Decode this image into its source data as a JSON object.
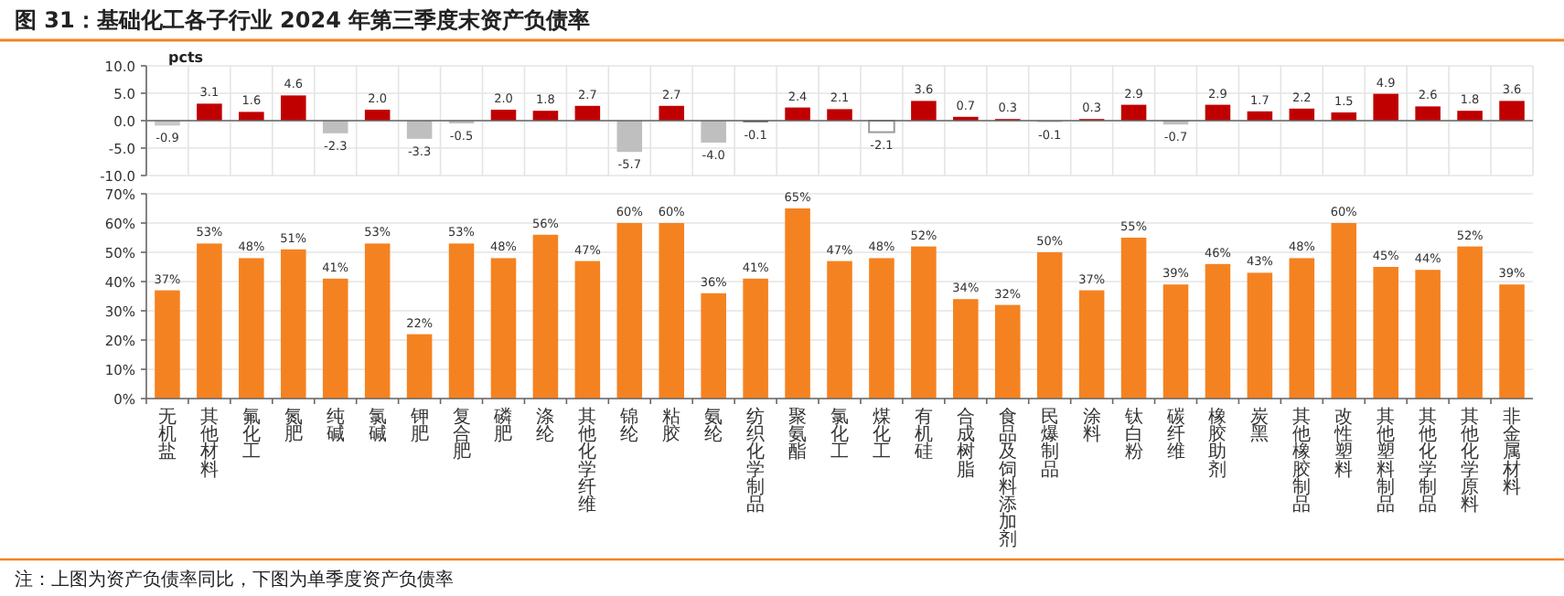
{
  "chart_data": [
    {
      "type": "bar",
      "title": "图 31：基础化工各子行业 2024 年第三季度末资产负债率",
      "ylabel": "pcts",
      "categories": [
        null,
        null,
        null,
        null,
        null,
        null,
        null,
        null,
        null,
        null,
        null,
        null,
        null,
        null,
        null,
        null,
        null,
        null,
        null,
        null,
        null,
        null,
        null,
        null,
        null,
        null,
        null,
        null,
        null,
        null,
        null,
        null,
        null
      ],
      "values": [
        -0.9,
        3.1,
        1.6,
        4.6,
        -2.3,
        2.0,
        -3.3,
        -0.5,
        2.0,
        1.8,
        2.7,
        -5.7,
        2.7,
        -4.0,
        -0.1,
        2.4,
        2.1,
        -2.1,
        3.6,
        0.7,
        0.3,
        -0.1,
        0.3,
        2.9,
        -0.7,
        2.9,
        1.7,
        2.2,
        1.5,
        4.9,
        2.6,
        1.8,
        3.6
      ],
      "colors": [
        "#c8c8c8",
        "#c00000",
        "#c00000",
        "#c00000",
        "#bfbfbf",
        "#c00000",
        "#bfbfbf",
        "#bfbfbf",
        "#c00000",
        "#c00000",
        "#c00000",
        "#bfbfbf",
        "#c00000",
        "#bfbfbf",
        "#404040",
        "#c00000",
        "#c00000",
        "#ffffff",
        "#c00000",
        "#c00000",
        "#c00000",
        "#bfbfbf",
        "#c00000",
        "#c00000",
        "#bfbfbf",
        "#c00000",
        "#c00000",
        "#c00000",
        "#c00000",
        "#c00000",
        "#c00000",
        "#c00000",
        "#c00000"
      ],
      "ylim": [
        -10,
        10
      ],
      "yticks": [
        {
          "value": 10,
          "label": "10.0"
        },
        {
          "value": 5,
          "label": "5.0"
        },
        {
          "value": 0,
          "label": "0.0"
        },
        {
          "value": -5,
          "label": "-5.0"
        },
        {
          "value": -10,
          "label": "-10.0"
        }
      ],
      "value_labels": [
        "-0.9",
        "3.1",
        "1.6",
        "4.6",
        "-2.3",
        "2.0",
        "-3.3",
        "-0.5",
        "2.0",
        "1.8",
        "2.7",
        "-5.7",
        "2.7",
        "-4.0",
        "-0.1",
        "2.4",
        "2.1",
        "-2.1",
        "3.6",
        "0.7",
        "0.3",
        "-0.1",
        "0.3",
        "2.9",
        "-0.7",
        "2.9",
        "1.7",
        "2.2",
        "1.5",
        "4.9",
        "2.6",
        "1.8",
        "3.6"
      ],
      "grid": true,
      "tick_labels": "y"
    },
    {
      "type": "bar",
      "categories": [
        "无机盐",
        "其他材料",
        "氟化工",
        "氮肥",
        "纯碱",
        "氯碱",
        "钾肥",
        "复合肥",
        "磷肥",
        "涤纶",
        "其他化学纤维",
        "锦纶",
        "粘胶",
        "氨纶",
        "纺织化学制品",
        "聚氨酯",
        "氯化工",
        "煤化工",
        "有机硅",
        "合成树脂",
        "食品及饲料添加剂",
        "民爆制品",
        "涂料",
        "钛白粉",
        "碳纤维",
        "橡胶助剂",
        "炭黑",
        "其他橡胶制品",
        "改性塑料",
        "其他塑料制品",
        "其他化学制品",
        "其他化学原料",
        "非金属材料"
      ],
      "values": [
        37,
        53,
        48,
        51,
        41,
        53,
        22,
        53,
        48,
        56,
        47,
        60,
        60,
        36,
        41,
        65,
        47,
        48,
        52,
        34,
        32,
        50,
        37,
        55,
        39,
        46,
        43,
        48,
        60,
        45,
        44,
        52,
        39
      ],
      "value_labels": [
        "37%",
        "53%",
        "48%",
        "51%",
        "41%",
        "53%",
        "22%",
        "53%",
        "48%",
        "56%",
        "47%",
        "60%",
        "60%",
        "36%",
        "41%",
        "65%",
        "47%",
        "48%",
        "52%",
        "34%",
        "32%",
        "50%",
        "37%",
        "55%",
        "39%",
        "46%",
        "43%",
        "48%",
        "60%",
        "45%",
        "44%",
        "52%",
        "39%"
      ],
      "color": "#f58220",
      "ylim": [
        0,
        70
      ],
      "yticks": [
        {
          "value": 0,
          "label": "0%"
        },
        {
          "value": 10,
          "label": "10%"
        },
        {
          "value": 20,
          "label": "20%"
        },
        {
          "value": 30,
          "label": "30%"
        },
        {
          "value": 40,
          "label": "40%"
        },
        {
          "value": 50,
          "label": "50%"
        },
        {
          "value": 60,
          "label": "60%"
        },
        {
          "value": 70,
          "label": "70%"
        }
      ],
      "grid": "y",
      "annotations": [
        "注：上图为资产负债率同比，下图为单季度资产负债率"
      ]
    }
  ]
}
